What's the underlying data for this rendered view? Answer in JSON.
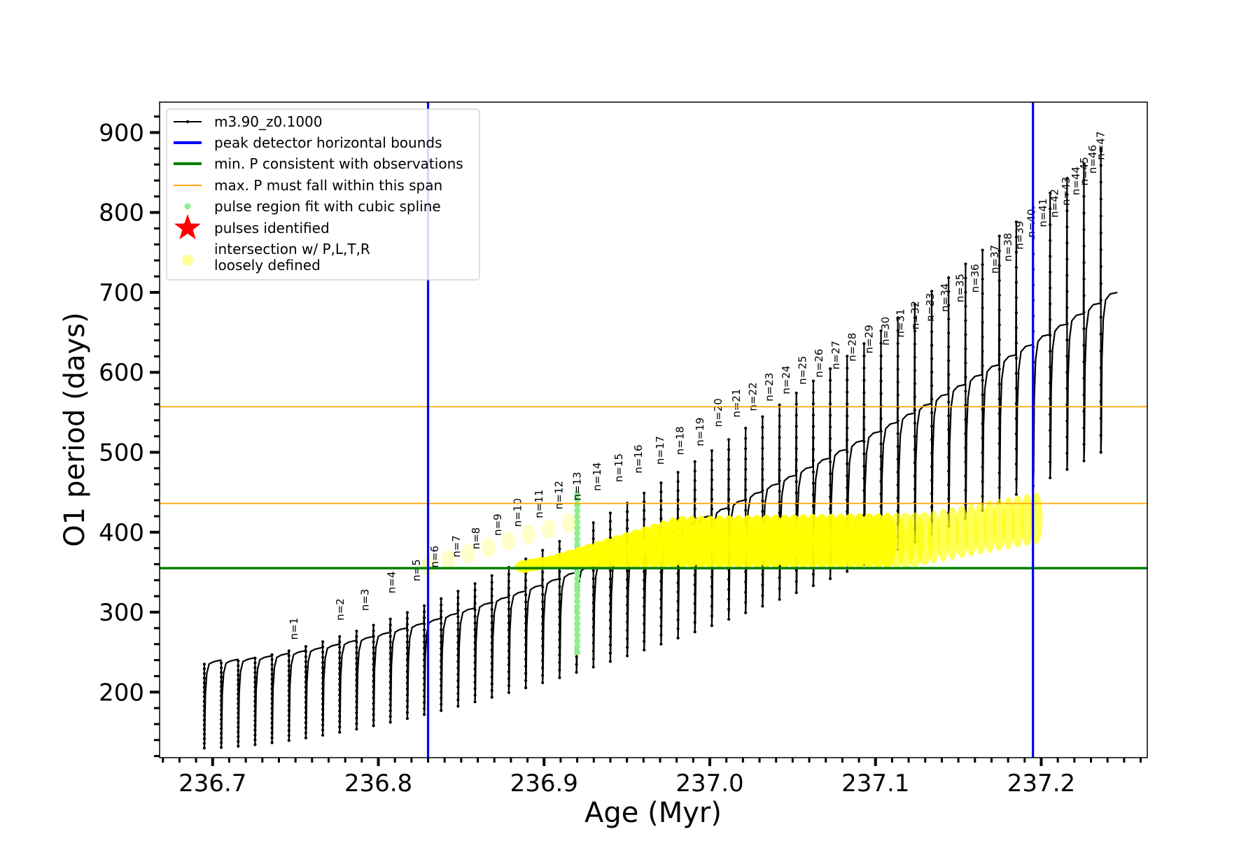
{
  "chart_data": {
    "type": "line",
    "xlabel": "Age (Myr)",
    "ylabel": "O1 period (days)",
    "xlim": [
      236.668,
      237.264
    ],
    "ylim": [
      118,
      938
    ],
    "xticks": [
      236.7,
      236.8,
      236.9,
      237.0,
      237.1,
      237.2
    ],
    "xtick_labels": [
      "236.7",
      "236.8",
      "236.9",
      "237.0",
      "237.1",
      "237.2"
    ],
    "yticks": [
      200,
      300,
      400,
      500,
      600,
      700,
      800,
      900
    ],
    "ytick_labels": [
      "200",
      "300",
      "400",
      "500",
      "600",
      "700",
      "800",
      "900"
    ],
    "grid": false,
    "legend_position": "top-left",
    "legend": [
      {
        "label": "m3.90_z0.1000",
        "style": "line-dots",
        "color": "#000000"
      },
      {
        "label": "peak detector horizontal bounds",
        "style": "line",
        "color": "#0000ff"
      },
      {
        "label": "min. P consistent with observations",
        "style": "line",
        "color": "#008000"
      },
      {
        "label": "max. P must fall within this span",
        "style": "line",
        "color": "#ffa500"
      },
      {
        "label": "pulse region fit with cubic spline",
        "style": "dot",
        "color": "#90ee90"
      },
      {
        "label": "pulses identified",
        "style": "star",
        "color": "#ff0000"
      },
      {
        "label": "intersection w/ P,L,T,R\nloosely defined",
        "style": "circle",
        "color": "#ffff99"
      }
    ],
    "vertical_lines": [
      {
        "x": 236.83,
        "color": "#0000ff",
        "role": "peak detector horizontal bounds"
      },
      {
        "x": 237.195,
        "color": "#0000ff",
        "role": "peak detector horizontal bounds"
      }
    ],
    "horizontal_lines": [
      {
        "y": 355,
        "color": "#008000",
        "role": "min. P consistent with observations"
      },
      {
        "y": 436,
        "color": "#ffa500",
        "role": "max. P must fall within this span"
      },
      {
        "y": 557,
        "color": "#ffa500",
        "role": "max. P must fall within this span"
      }
    ],
    "track": {
      "name": "m3.90_z0.1000",
      "pulse_start_age": 236.695,
      "pulse_end_age": 237.236,
      "pulse_count": 54,
      "baseline_start": 240,
      "baseline_end": 700,
      "pulse_min_start": 130,
      "pulse_min_end": 500,
      "spike_top_start": 235,
      "spike_top_end": 880
    },
    "pulse_labels": [
      {
        "n": "n=1",
        "x": 236.749,
        "y": 262
      },
      {
        "n": "n=2",
        "x": 236.777,
        "y": 286
      },
      {
        "n": "n=3",
        "x": 236.792,
        "y": 298
      },
      {
        "n": "n=4",
        "x": 236.808,
        "y": 320
      },
      {
        "n": "n=5",
        "x": 236.823,
        "y": 335
      },
      {
        "n": "n=6",
        "x": 236.834,
        "y": 352
      },
      {
        "n": "n=7",
        "x": 236.847,
        "y": 365
      },
      {
        "n": "n=8",
        "x": 236.859,
        "y": 375
      },
      {
        "n": "n=9",
        "x": 236.872,
        "y": 392
      },
      {
        "n": "n=10",
        "x": 236.884,
        "y": 403
      },
      {
        "n": "n=11",
        "x": 236.897,
        "y": 414
      },
      {
        "n": "n=12",
        "x": 236.909,
        "y": 425
      },
      {
        "n": "n=13",
        "x": 236.92,
        "y": 436
      },
      {
        "n": "n=14",
        "x": 236.932,
        "y": 448
      },
      {
        "n": "n=15",
        "x": 236.945,
        "y": 459
      },
      {
        "n": "n=16",
        "x": 236.957,
        "y": 470
      },
      {
        "n": "n=17",
        "x": 236.97,
        "y": 481
      },
      {
        "n": "n=18",
        "x": 236.982,
        "y": 493
      },
      {
        "n": "n=19",
        "x": 236.994,
        "y": 504
      },
      {
        "n": "n=20",
        "x": 237.005,
        "y": 528
      },
      {
        "n": "n=21",
        "x": 237.016,
        "y": 540
      },
      {
        "n": "n=22",
        "x": 237.026,
        "y": 548
      },
      {
        "n": "n=23",
        "x": 237.036,
        "y": 560
      },
      {
        "n": "n=24",
        "x": 237.046,
        "y": 569
      },
      {
        "n": "n=25",
        "x": 237.056,
        "y": 581
      },
      {
        "n": "n=26",
        "x": 237.066,
        "y": 590
      },
      {
        "n": "n=27",
        "x": 237.076,
        "y": 600
      },
      {
        "n": "n=28",
        "x": 237.086,
        "y": 610
      },
      {
        "n": "n=29",
        "x": 237.096,
        "y": 620
      },
      {
        "n": "n=30",
        "x": 237.106,
        "y": 630
      },
      {
        "n": "n=31",
        "x": 237.115,
        "y": 640
      },
      {
        "n": "n=32",
        "x": 237.124,
        "y": 650
      },
      {
        "n": "n=33",
        "x": 237.133,
        "y": 660
      },
      {
        "n": "n=34",
        "x": 237.142,
        "y": 672
      },
      {
        "n": "n=35",
        "x": 237.151,
        "y": 684
      },
      {
        "n": "n=36",
        "x": 237.16,
        "y": 696
      },
      {
        "n": "n=37",
        "x": 237.172,
        "y": 720
      },
      {
        "n": "n=38",
        "x": 237.18,
        "y": 735
      },
      {
        "n": "n=39",
        "x": 237.187,
        "y": 750
      },
      {
        "n": "n=40",
        "x": 237.194,
        "y": 765
      },
      {
        "n": "n=41",
        "x": 237.201,
        "y": 778
      },
      {
        "n": "n=42",
        "x": 237.208,
        "y": 790
      },
      {
        "n": "n=43",
        "x": 237.215,
        "y": 805
      },
      {
        "n": "n=44",
        "x": 237.221,
        "y": 818
      },
      {
        "n": "n=45",
        "x": 237.226,
        "y": 830
      },
      {
        "n": "n=46",
        "x": 237.231,
        "y": 845
      },
      {
        "n": "n=47",
        "x": 237.236,
        "y": 862
      }
    ],
    "cubic_spline_region": {
      "x": 236.92,
      "ymin": 250,
      "ymax": 448
    },
    "intersection_markers": {
      "x_start": 236.888,
      "x_end": 237.197,
      "count": 56,
      "y_low": 355,
      "y_high_start": 360,
      "y_high_peak": 420,
      "y_high_end": 450,
      "faint_x_start": 236.83,
      "faint_x_end": 236.915,
      "faint_y_start": 358,
      "faint_y_end": 412
    }
  }
}
